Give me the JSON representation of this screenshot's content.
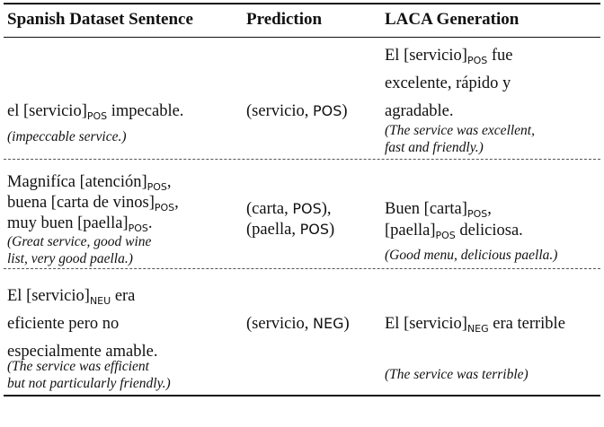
{
  "headers": [
    "Spanish Dataset Sentence",
    "Prediction",
    "LACA Generation"
  ],
  "rows": [
    {
      "sentence": [
        [
          {
            "t": "el [servicio]"
          },
          {
            "s": "POS"
          },
          {
            "t": " impecable."
          }
        ]
      ],
      "sentence_translation": [
        "(impeccable service.)"
      ],
      "prediction": [
        [
          {
            "t": "(servicio, "
          },
          {
            "g": "POS"
          },
          {
            "t": ")"
          }
        ]
      ],
      "generation": [
        [
          {
            "t": "El [servicio]"
          },
          {
            "s": "POS"
          },
          {
            "t": " fue"
          }
        ],
        [
          {
            "t": "excelente, rápido y"
          }
        ],
        [
          {
            "t": "agradable."
          }
        ]
      ],
      "generation_translation": [
        "(The service was excellent,",
        "fast and friendly.)"
      ]
    },
    {
      "sentence": [
        [
          {
            "t": "Magnifíca [atención]"
          },
          {
            "s": "POS"
          },
          {
            "t": ","
          }
        ],
        [
          {
            "t": "buena [carta de vinos]"
          },
          {
            "s": "POS"
          },
          {
            "t": ","
          }
        ],
        [
          {
            "t": "muy buen [paella]"
          },
          {
            "s": "POS"
          },
          {
            "t": "."
          }
        ]
      ],
      "sentence_translation": [
        "(Great service, good wine",
        "list, very good paella.)"
      ],
      "prediction": [
        [
          {
            "t": "(carta, "
          },
          {
            "g": "POS"
          },
          {
            "t": "),"
          }
        ],
        [
          {
            "t": "(paella, "
          },
          {
            "g": "POS"
          },
          {
            "t": ")"
          }
        ]
      ],
      "generation": [
        [
          {
            "t": "Buen [carta]"
          },
          {
            "s": "POS"
          },
          {
            "t": ","
          }
        ],
        [
          {
            "t": " [paella]"
          },
          {
            "s": "POS"
          },
          {
            "t": " deliciosa."
          }
        ]
      ],
      "generation_translation": [
        "(Good menu, delicious paella.)"
      ]
    },
    {
      "sentence": [
        [
          {
            "t": "El [servicio]"
          },
          {
            "s": "NEU"
          },
          {
            "t": " era"
          }
        ],
        [
          {
            "t": "eficiente pero no"
          }
        ],
        [
          {
            "t": "especialmente amable."
          }
        ]
      ],
      "sentence_translation": [
        "(The service was efficient",
        "but not particularly friendly.)"
      ],
      "prediction": [
        [
          {
            "t": "(servicio, "
          },
          {
            "g": "NEG"
          },
          {
            "t": ")"
          }
        ]
      ],
      "generation": [
        [
          {
            "t": "El [servicio]"
          },
          {
            "s": "NEG"
          },
          {
            "t": " era terrible"
          }
        ]
      ],
      "generation_translation": [
        "(The service was terrible)"
      ]
    }
  ]
}
